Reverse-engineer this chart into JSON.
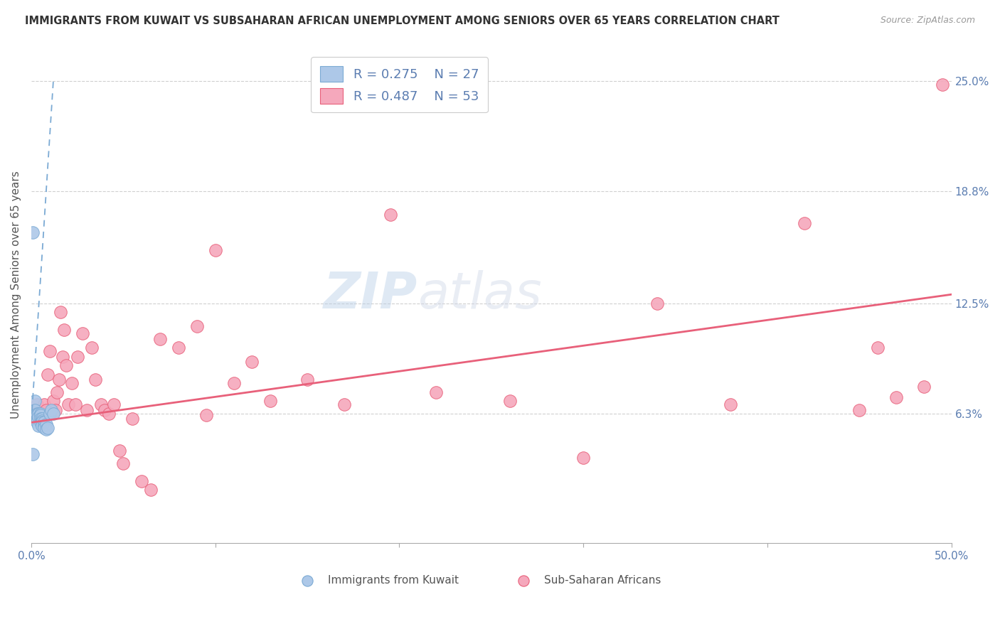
{
  "title": "IMMIGRANTS FROM KUWAIT VS SUBSAHARAN AFRICAN UNEMPLOYMENT AMONG SENIORS OVER 65 YEARS CORRELATION CHART",
  "source": "Source: ZipAtlas.com",
  "ylabel": "Unemployment Among Seniors over 65 years",
  "xlim": [
    0.0,
    0.5
  ],
  "ylim": [
    -0.01,
    0.27
  ],
  "plot_ylim": [
    0.0,
    0.25
  ],
  "xticks": [
    0.0,
    0.1,
    0.2,
    0.3,
    0.4,
    0.5
  ],
  "xticklabels": [
    "0.0%",
    "",
    "",
    "",
    "",
    "50.0%"
  ],
  "ytick_labels_right": [
    "25.0%",
    "18.8%",
    "12.5%",
    "6.3%"
  ],
  "ytick_values_right": [
    0.25,
    0.188,
    0.125,
    0.063
  ],
  "legend_r1": "R = 0.275",
  "legend_n1": "N = 27",
  "legend_r2": "R = 0.487",
  "legend_n2": "N = 53",
  "legend_label1": "Immigrants from Kuwait",
  "legend_label2": "Sub-Saharan Africans",
  "color_kuwait": "#adc8e8",
  "color_subsaharan": "#f5a8bc",
  "color_line_kuwait": "#7baad4",
  "color_line_subsaharan": "#e8607a",
  "background_color": "#ffffff",
  "kuwait_scatter_x": [
    0.001,
    0.001,
    0.002,
    0.002,
    0.003,
    0.003,
    0.003,
    0.004,
    0.004,
    0.004,
    0.005,
    0.005,
    0.005,
    0.005,
    0.006,
    0.006,
    0.006,
    0.006,
    0.007,
    0.007,
    0.007,
    0.008,
    0.008,
    0.009,
    0.01,
    0.011,
    0.012
  ],
  "kuwait_scatter_y": [
    0.165,
    0.04,
    0.07,
    0.065,
    0.063,
    0.062,
    0.058,
    0.063,
    0.061,
    0.056,
    0.063,
    0.062,
    0.06,
    0.058,
    0.06,
    0.059,
    0.058,
    0.056,
    0.058,
    0.056,
    0.055,
    0.057,
    0.054,
    0.055,
    0.063,
    0.065,
    0.063
  ],
  "subsaharan_scatter_x": [
    0.003,
    0.005,
    0.007,
    0.008,
    0.009,
    0.01,
    0.012,
    0.013,
    0.014,
    0.015,
    0.016,
    0.017,
    0.018,
    0.019,
    0.02,
    0.022,
    0.024,
    0.025,
    0.028,
    0.03,
    0.033,
    0.035,
    0.038,
    0.04,
    0.042,
    0.045,
    0.048,
    0.05,
    0.055,
    0.06,
    0.065,
    0.07,
    0.08,
    0.09,
    0.095,
    0.1,
    0.11,
    0.12,
    0.13,
    0.15,
    0.17,
    0.195,
    0.22,
    0.26,
    0.3,
    0.34,
    0.38,
    0.42,
    0.45,
    0.46,
    0.47,
    0.485,
    0.495
  ],
  "subsaharan_scatter_y": [
    0.068,
    0.058,
    0.068,
    0.065,
    0.085,
    0.098,
    0.07,
    0.065,
    0.075,
    0.082,
    0.12,
    0.095,
    0.11,
    0.09,
    0.068,
    0.08,
    0.068,
    0.095,
    0.108,
    0.065,
    0.1,
    0.082,
    0.068,
    0.065,
    0.063,
    0.068,
    0.042,
    0.035,
    0.06,
    0.025,
    0.02,
    0.105,
    0.1,
    0.112,
    0.062,
    0.155,
    0.08,
    0.092,
    0.07,
    0.082,
    0.068,
    0.175,
    0.075,
    0.07,
    0.038,
    0.125,
    0.068,
    0.17,
    0.065,
    0.1,
    0.072,
    0.078,
    0.248
  ],
  "kuwait_line_x": [
    0.0,
    0.012
  ],
  "kuwait_line_y": [
    0.058,
    0.25
  ],
  "subsaharan_line_x": [
    0.0,
    0.5
  ],
  "subsaharan_line_y": [
    0.058,
    0.13
  ]
}
